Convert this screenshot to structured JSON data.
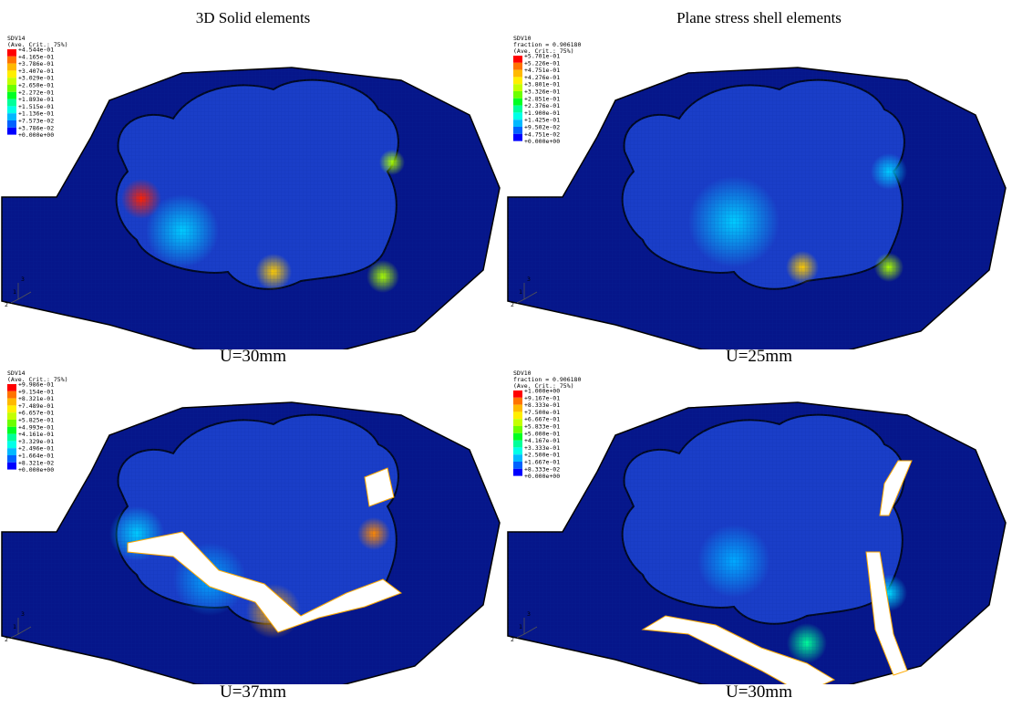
{
  "columns": [
    "3D Solid elements",
    "Plane stress shell elements"
  ],
  "panels": [
    {
      "caption": "U=30mm",
      "legend": {
        "variable": "SDV14",
        "criterion": "(Ave. Crit.: 75%)",
        "levels": [
          "+4.544e-01",
          "+4.165e-01",
          "+3.786e-01",
          "+3.407e-01",
          "+3.029e-01",
          "+2.650e-01",
          "+2.272e-01",
          "+1.893e-01",
          "+1.515e-01",
          "+1.136e-01",
          "+7.573e-02",
          "+3.786e-02",
          "+0.000e+00"
        ]
      },
      "triad": [
        "3",
        "1",
        "2"
      ]
    },
    {
      "caption": "U=25mm",
      "legend": {
        "variable": "SDV10",
        "fraction": "fraction = 0.906180",
        "criterion": "(Ave. Crit.: 75%)",
        "levels": [
          "+5.701e-01",
          "+5.226e-01",
          "+4.751e-01",
          "+4.276e-01",
          "+3.801e-01",
          "+3.326e-01",
          "+2.851e-01",
          "+2.376e-01",
          "+1.900e-01",
          "+1.425e-01",
          "+9.502e-02",
          "+4.751e-02",
          "+0.000e+00"
        ]
      },
      "triad": [
        "3",
        "1",
        "2"
      ]
    },
    {
      "caption": "U=37mm",
      "legend": {
        "variable": "SDV14",
        "criterion": "(Ave. Crit.: 75%)",
        "levels": [
          "+9.986e-01",
          "+9.154e-01",
          "+8.321e-01",
          "+7.489e-01",
          "+6.657e-01",
          "+5.825e-01",
          "+4.993e-01",
          "+4.161e-01",
          "+3.329e-01",
          "+2.496e-01",
          "+1.664e-01",
          "+8.321e-02",
          "+0.000e+00"
        ]
      },
      "triad": [
        "3",
        "1",
        "2"
      ]
    },
    {
      "caption": "U=30mm",
      "legend": {
        "variable": "SDV10",
        "fraction": "fraction = 0.906180",
        "criterion": "(Ave. Crit.: 75%)",
        "levels": [
          "+1.000e+00",
          "+9.167e-01",
          "+8.333e-01",
          "+7.500e-01",
          "+6.667e-01",
          "+5.833e-01",
          "+5.000e-01",
          "+4.167e-01",
          "+3.333e-01",
          "+2.500e-01",
          "+1.667e-01",
          "+8.333e-02",
          "+0.000e+00"
        ]
      },
      "triad": [
        "3",
        "1",
        "2"
      ]
    }
  ]
}
